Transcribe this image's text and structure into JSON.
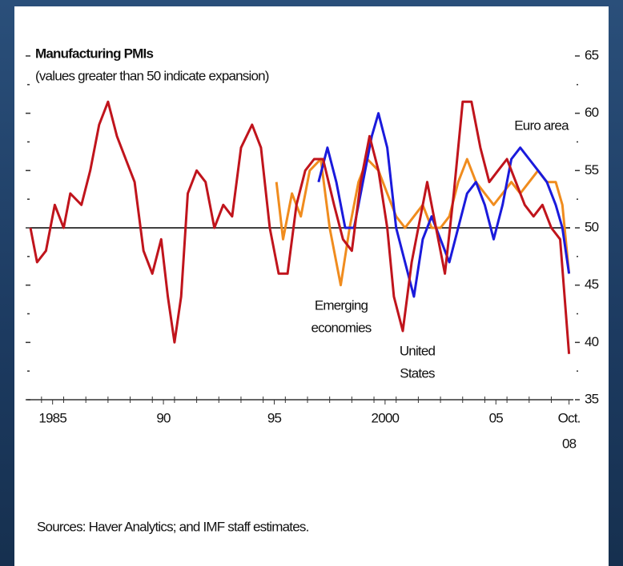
{
  "chart_data": {
    "type": "line",
    "title": "Manufacturing PMIs",
    "subtitle": "(values greater than 50 indicate expansion)",
    "source": "Sources: Haver Analytics; and IMF staff estimates.",
    "xlim": [
      1984.5,
      2008.85
    ],
    "ylim": [
      35,
      65
    ],
    "yticks": [
      35,
      40,
      45,
      50,
      55,
      60,
      65
    ],
    "yticks_minor": [
      37.5,
      42.5,
      47.5,
      52.5,
      57.5,
      62.5
    ],
    "xticks": [
      {
        "value": 1985.5,
        "label": "1985"
      },
      {
        "value": 1990.5,
        "label": "90"
      },
      {
        "value": 1995.5,
        "label": "95"
      },
      {
        "value": 2000.5,
        "label": "2000"
      },
      {
        "value": 2005.5,
        "label": "05"
      },
      {
        "value": 2008.8,
        "label": [
          "Oct.",
          "08"
        ]
      }
    ],
    "reference_line": 50,
    "series": [
      {
        "name": [
          "United",
          "States"
        ],
        "color": "#c0141c",
        "x": [
          1984.5,
          1984.8,
          1985.2,
          1985.6,
          1986.0,
          1986.3,
          1986.8,
          1987.2,
          1987.6,
          1988.0,
          1988.4,
          1988.8,
          1989.2,
          1989.6,
          1990.0,
          1990.4,
          1990.7,
          1991.0,
          1991.3,
          1991.6,
          1992.0,
          1992.4,
          1992.8,
          1993.2,
          1993.6,
          1994.0,
          1994.5,
          1994.9,
          1995.3,
          1995.7,
          1996.1,
          1996.5,
          1996.9,
          1997.3,
          1997.7,
          1998.2,
          1998.6,
          1999.0,
          1999.4,
          1999.8,
          2000.2,
          2000.6,
          2000.9,
          2001.3,
          2001.7,
          2002.0,
          2002.4,
          2002.8,
          2003.2,
          2003.6,
          2004.0,
          2004.4,
          2004.8,
          2005.2,
          2005.6,
          2006.0,
          2006.4,
          2006.8,
          2007.2,
          2007.6,
          2008.0,
          2008.4,
          2008.8
        ],
        "values": [
          50,
          47,
          48,
          52,
          50,
          53,
          52,
          55,
          59,
          61,
          58,
          56,
          54,
          48,
          46,
          49,
          44,
          40,
          44,
          53,
          55,
          54,
          50,
          52,
          51,
          57,
          59,
          57,
          50,
          46,
          46,
          52,
          55,
          56,
          56,
          52,
          49,
          48,
          54,
          58,
          55,
          50,
          44,
          41,
          47,
          50,
          54,
          50,
          46,
          53,
          61,
          61,
          57,
          54,
          55,
          56,
          54,
          52,
          51,
          52,
          50,
          49,
          39
        ]
      },
      {
        "name": "Euro area",
        "color": "#1a1adc",
        "x": [
          1997.5,
          1997.9,
          1998.3,
          1998.7,
          1999.1,
          1999.5,
          1999.9,
          2000.2,
          2000.6,
          2001.0,
          2001.4,
          2001.8,
          2002.2,
          2002.6,
          2003.0,
          2003.4,
          2003.8,
          2004.2,
          2004.6,
          2005.0,
          2005.4,
          2005.8,
          2006.2,
          2006.6,
          2007.0,
          2007.4,
          2007.8,
          2008.2,
          2008.5,
          2008.8
        ],
        "values": [
          54,
          57,
          54,
          50,
          50,
          54,
          58,
          60,
          57,
          50,
          47,
          44,
          49,
          51,
          49,
          47,
          50,
          53,
          54,
          52,
          49,
          52,
          56,
          57,
          56,
          55,
          54,
          52,
          50,
          46
        ]
      },
      {
        "name": [
          "Emerging",
          "economies"
        ],
        "color": "#f08c1e",
        "x": [
          1995.6,
          1995.9,
          1996.3,
          1996.7,
          1997.1,
          1997.6,
          1998.0,
          1998.5,
          1998.9,
          1999.3,
          1999.7,
          2000.2,
          2000.6,
          2001.0,
          2001.4,
          2001.8,
          2002.2,
          2002.6,
          2003.0,
          2003.4,
          2003.8,
          2004.2,
          2004.6,
          2005.0,
          2005.4,
          2005.8,
          2006.2,
          2006.6,
          2007.0,
          2007.4,
          2007.8,
          2008.2,
          2008.5,
          2008.8
        ],
        "values": [
          54,
          49,
          53,
          51,
          55,
          56,
          50,
          45,
          50,
          54,
          56,
          55,
          53,
          51,
          50,
          51,
          52,
          50,
          50,
          51,
          54,
          56,
          54,
          53,
          52,
          53,
          54,
          53,
          54,
          55,
          54,
          54,
          52,
          46
        ]
      }
    ]
  }
}
